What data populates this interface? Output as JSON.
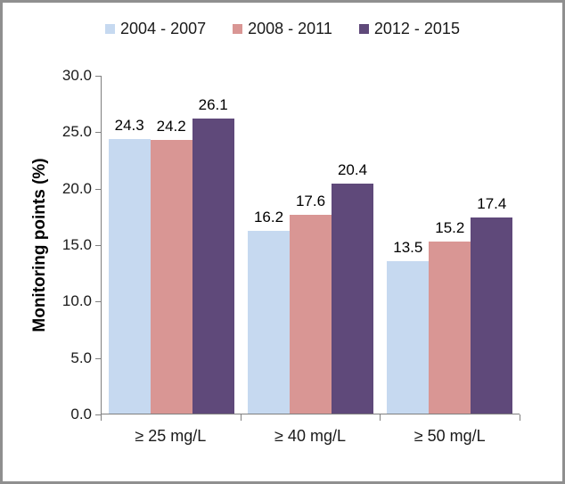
{
  "chart_data": {
    "type": "bar",
    "title": "",
    "categories": [
      "≥ 25 mg/L",
      "≥ 40 mg/L",
      "≥ 50 mg/L"
    ],
    "series": [
      {
        "name": "2004 - 2007",
        "color": "#c6d9f0",
        "values": [
          24.3,
          16.2,
          13.5
        ]
      },
      {
        "name": "2008 - 2011",
        "color": "#d99694",
        "values": [
          24.2,
          17.6,
          15.2
        ]
      },
      {
        "name": "2012 - 2015",
        "color": "#5f497a",
        "values": [
          26.1,
          20.4,
          17.4
        ]
      }
    ],
    "xlabel": "",
    "ylabel": "Monitoring points (%)",
    "ylim": [
      0,
      30
    ],
    "ytick_step": 5,
    "yticks": [
      "0.0",
      "5.0",
      "10.0",
      "15.0",
      "20.0",
      "25.0",
      "30.0"
    ],
    "grid": false,
    "legend_position": "top",
    "value_labels_shown": true,
    "axis_color": "#7f7f7f",
    "frame_border_color": "#8f8f8f"
  }
}
